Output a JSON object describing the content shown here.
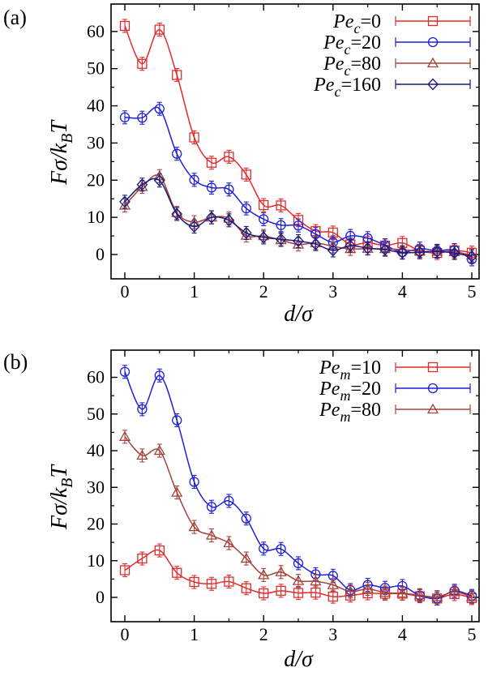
{
  "colors": {
    "red": "#e32b2b",
    "blue": "#1f1fd6",
    "brown": "#a5423a",
    "navy": "#1a1a80"
  },
  "chart_data": [
    {
      "type": "line",
      "panel_label": "(a)",
      "xlabel": "d/σ",
      "ylabel": "Fσ/k_BT",
      "xlim": [
        0,
        5
      ],
      "ylim": [
        -5,
        65
      ],
      "xticks": [
        "0",
        "1",
        "2",
        "3",
        "4",
        "5"
      ],
      "yticks": [
        "0",
        "10",
        "20",
        "30",
        "40",
        "50",
        "60"
      ],
      "legend_position": "top-right",
      "x": [
        0,
        0.25,
        0.5,
        0.75,
        1.0,
        1.25,
        1.5,
        1.75,
        2.0,
        2.25,
        2.5,
        2.75,
        3.0,
        3.25,
        3.5,
        3.75,
        4.0,
        4.25,
        4.5,
        4.75,
        5.0
      ],
      "series": [
        {
          "name": "Pe_c=0",
          "name_base": "Pe",
          "name_sub": "c",
          "name_val": "=0",
          "marker": "square",
          "color": "#e32b2b",
          "values": [
            61.5,
            51.3,
            60.5,
            48.3,
            31.5,
            24.7,
            26.3,
            21.5,
            13.3,
            13.2,
            9.3,
            6.3,
            5.9,
            2.7,
            3.2,
            2.4,
            3.1,
            1.0,
            0.4,
            1.1,
            0.5
          ]
        },
        {
          "name": "Pe_c=20",
          "name_base": "Pe",
          "name_sub": "c",
          "name_val": "=20",
          "marker": "circle",
          "color": "#1f1fd6",
          "values": [
            36.9,
            36.8,
            39.2,
            27.1,
            20.1,
            18.0,
            17.5,
            12.4,
            9.5,
            7.9,
            7.8,
            5.5,
            3.3,
            5.0,
            4.4,
            2.5,
            0.6,
            1.6,
            1.0,
            1.2,
            -1.3
          ]
        },
        {
          "name": "Pe_c=80",
          "name_base": "Pe",
          "name_sub": "c",
          "name_val": "=80",
          "marker": "triangle",
          "color": "#a5423a",
          "values": [
            13.2,
            18.2,
            21.1,
            11.2,
            8.7,
            10.0,
            9.7,
            5.1,
            5.0,
            3.9,
            2.7,
            3.1,
            2.2,
            1.5,
            1.6,
            1.5,
            1.3,
            0.9,
            0.8,
            0.7,
            -0.2
          ]
        },
        {
          "name": "Pe_c=160",
          "name_base": "Pe",
          "name_sub": "c",
          "name_val": "=160",
          "marker": "diamond",
          "color": "#1a1a80",
          "values": [
            14.2,
            18.8,
            19.9,
            10.9,
            7.5,
            10.0,
            9.2,
            5.8,
            4.6,
            4.1,
            3.6,
            2.8,
            1.1,
            2.4,
            1.7,
            1.3,
            0.5,
            0.6,
            0.8,
            0.4,
            -0.5
          ]
        }
      ]
    },
    {
      "type": "line",
      "panel_label": "(b)",
      "xlabel": "d/σ",
      "ylabel": "Fσ/k_BT",
      "xlim": [
        0,
        5
      ],
      "ylim": [
        -5,
        65
      ],
      "xticks": [
        "0",
        "1",
        "2",
        "3",
        "4",
        "5"
      ],
      "yticks": [
        "0",
        "10",
        "20",
        "30",
        "40",
        "50",
        "60"
      ],
      "legend_position": "top-right",
      "x": [
        0,
        0.25,
        0.5,
        0.75,
        1.0,
        1.25,
        1.5,
        1.75,
        2.0,
        2.25,
        2.5,
        2.75,
        3.0,
        3.25,
        3.5,
        3.75,
        4.0,
        4.25,
        4.5,
        4.75,
        5.0
      ],
      "series": [
        {
          "name": "Pe_m=10",
          "name_base": "Pe",
          "name_sub": "m",
          "name_val": "=10",
          "marker": "square",
          "color": "#e32b2b",
          "values": [
            7.4,
            10.6,
            12.8,
            6.7,
            4.2,
            3.7,
            4.3,
            2.5,
            1.1,
            1.8,
            1.2,
            1.3,
            0.2,
            0.5,
            1.1,
            1.0,
            1.0,
            0.3,
            -0.3,
            0.9,
            -0.2
          ]
        },
        {
          "name": "Pe_m=20",
          "name_base": "Pe",
          "name_sub": "m",
          "name_val": "=20",
          "marker": "circle",
          "color": "#1f1fd6",
          "values": [
            61.5,
            51.3,
            60.5,
            48.3,
            31.5,
            24.7,
            26.3,
            21.5,
            13.3,
            13.2,
            9.3,
            6.3,
            5.9,
            2.0,
            3.4,
            2.6,
            3.1,
            0.5,
            -0.3,
            1.8,
            0.4
          ]
        },
        {
          "name": "Pe_m=80",
          "name_base": "Pe",
          "name_sub": "m",
          "name_val": "=80",
          "marker": "triangle",
          "color": "#a5423a",
          "values": [
            43.8,
            38.7,
            40.0,
            28.6,
            19.2,
            16.9,
            14.8,
            10.6,
            6.1,
            6.9,
            4.5,
            4.4,
            3.4,
            1.6,
            2.3,
            1.3,
            1.1,
            0.6,
            0.1,
            1.5,
            0.1
          ]
        }
      ]
    }
  ]
}
